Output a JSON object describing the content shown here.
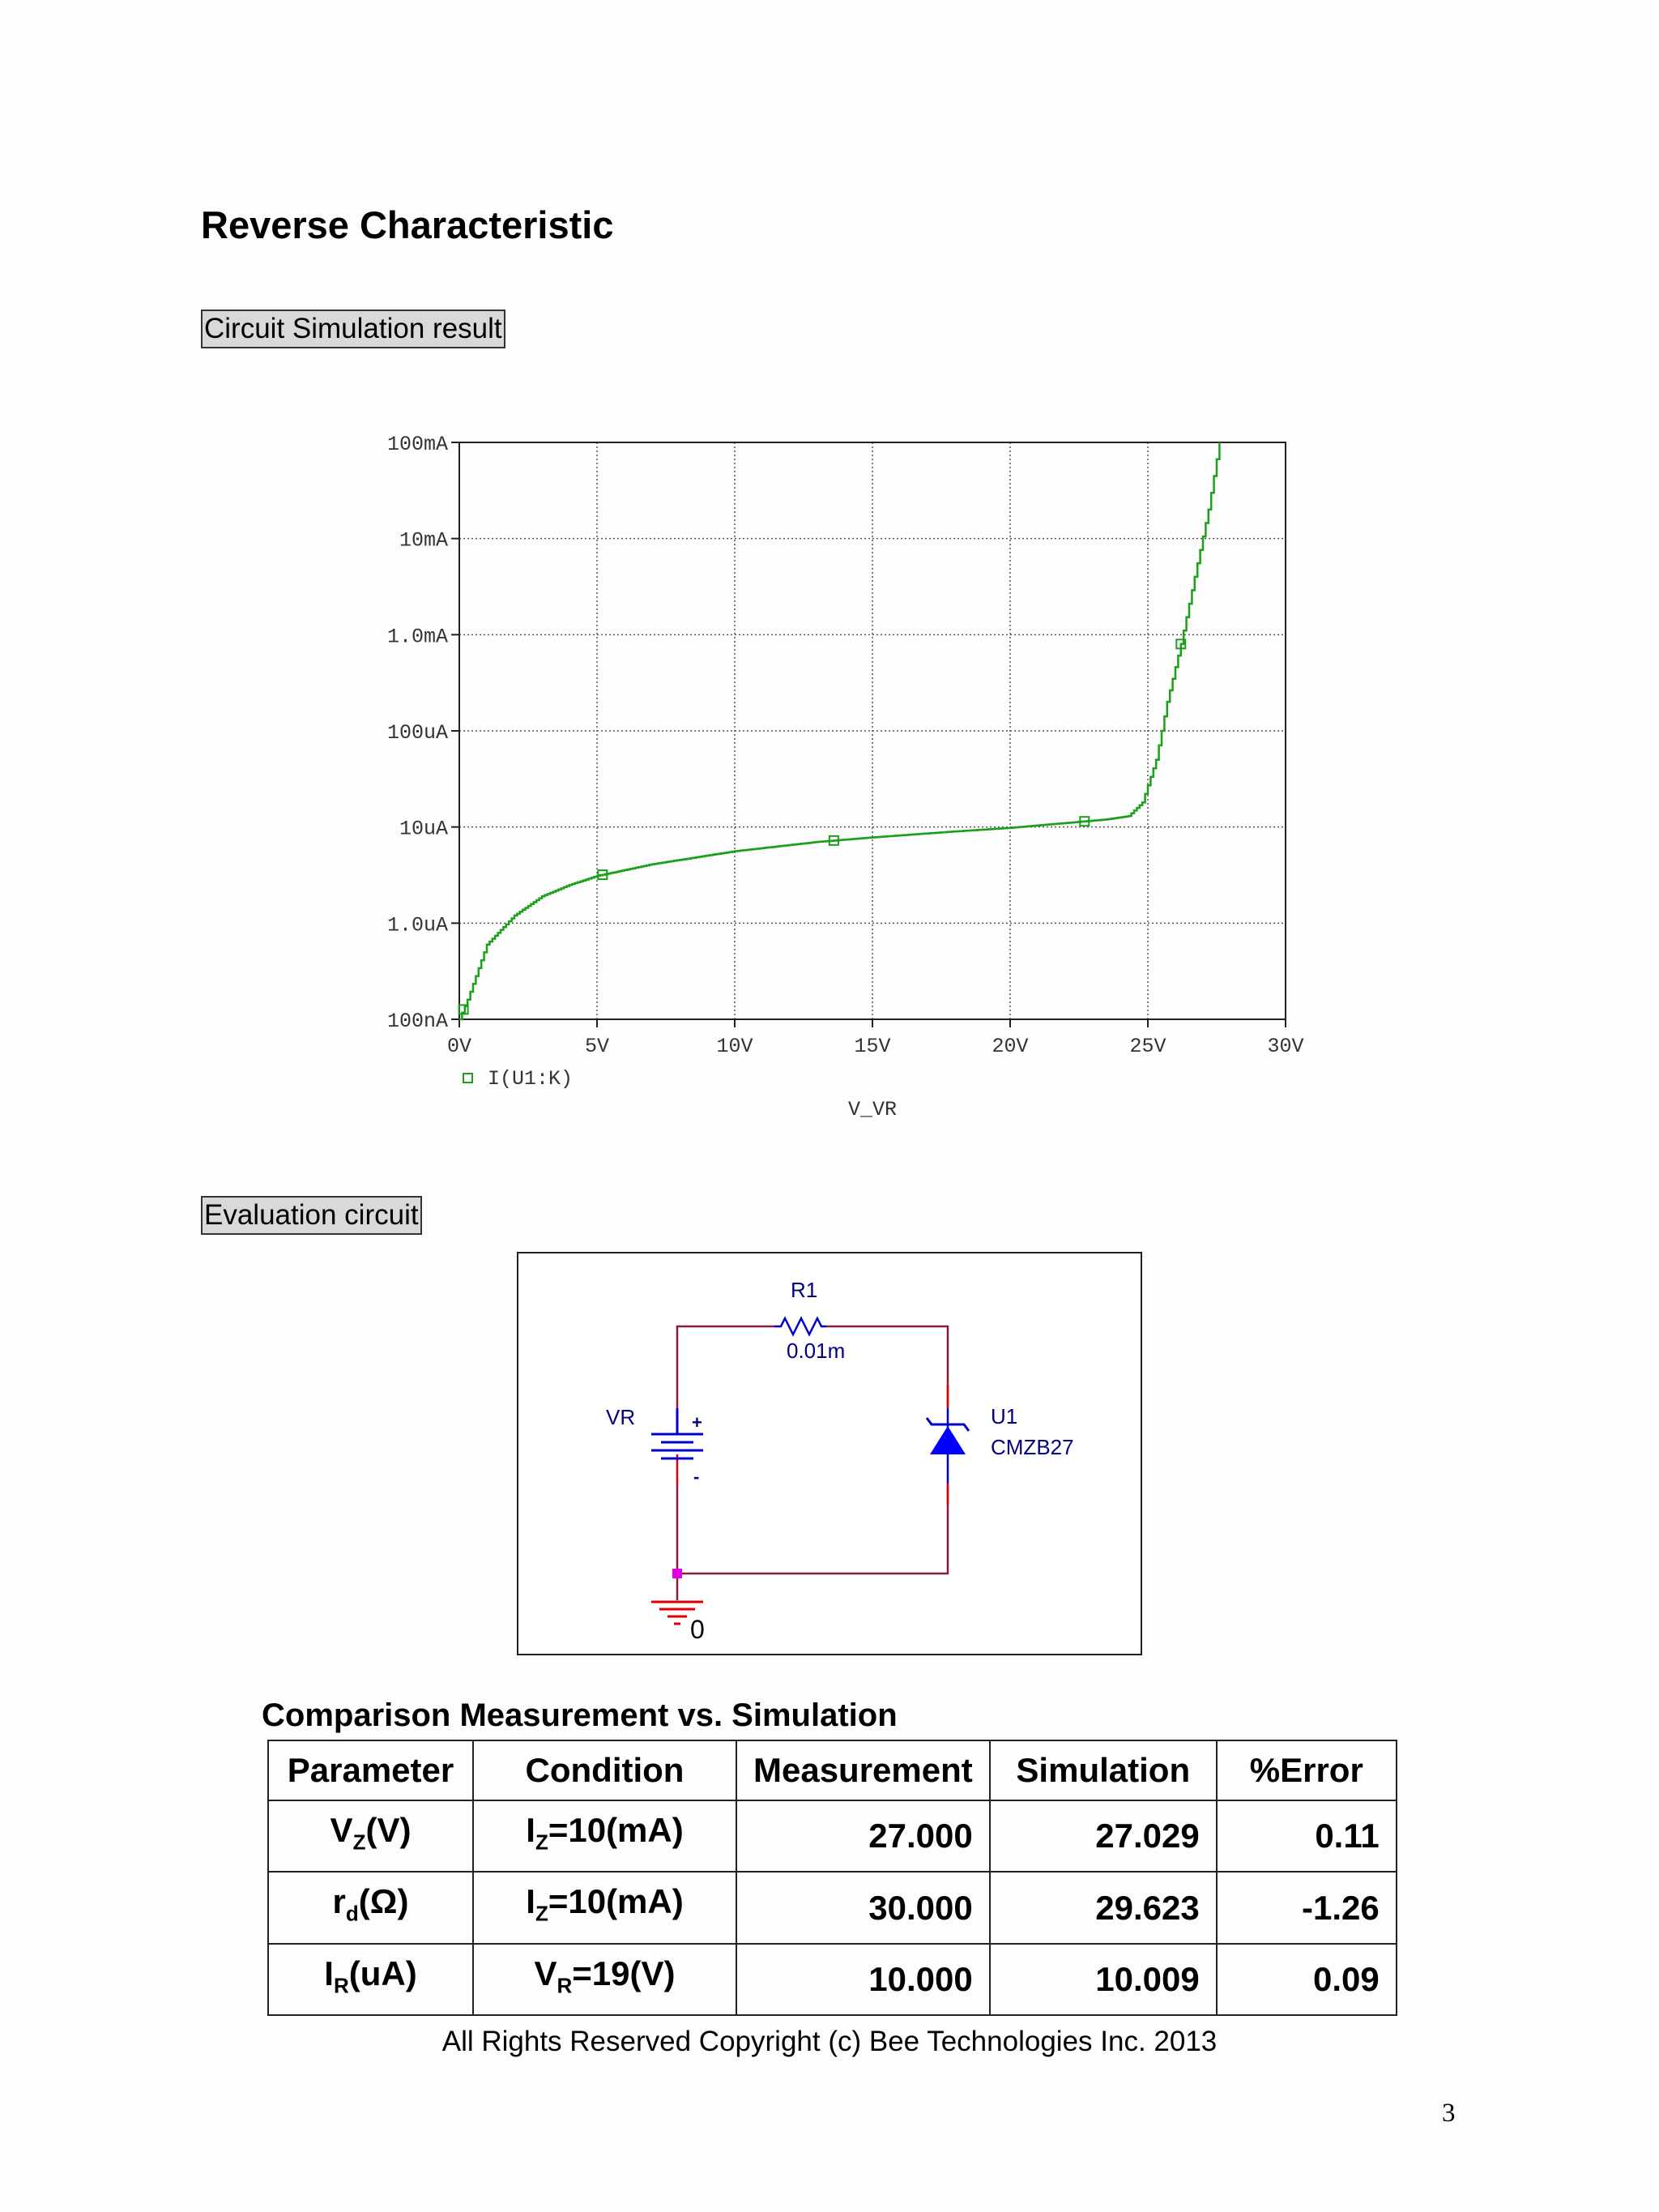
{
  "page": {
    "title": "Reverse Characteristic",
    "section1_label": "Circuit Simulation result",
    "section2_label": "Evaluation circuit",
    "footer": "All Rights Reserved Copyright (c) Bee Technologies Inc. 2013",
    "page_number": "3"
  },
  "chart_data": {
    "type": "line",
    "xlabel": "V_VR",
    "ylabel": "",
    "x_ticks": [
      "0V",
      "5V",
      "10V",
      "15V",
      "20V",
      "25V",
      "30V"
    ],
    "y_ticks": [
      "100nA",
      "1.0uA",
      "10uA",
      "100uA",
      "1.0mA",
      "10mA",
      "100mA"
    ],
    "xlim": [
      0,
      30
    ],
    "ylim": [
      1e-07,
      0.1
    ],
    "y_scale": "log",
    "grid": true,
    "legend_position": "bottom-left",
    "series": [
      {
        "name": "I(U1:K)",
        "color": "#1aa01a",
        "x": [
          0,
          0.3,
          1,
          2,
          3,
          4,
          5,
          7,
          10,
          13,
          15,
          18,
          20,
          22,
          23.5,
          24.3,
          24.8,
          25.3,
          25.7,
          26.2,
          26.7,
          27.2,
          27.6
        ],
        "y": [
          1e-07,
          1.6e-07,
          6e-07,
          1.2e-06,
          1.9e-06,
          2.5e-06,
          3.1e-06,
          4.1e-06,
          5.6e-06,
          7e-06,
          7.8e-06,
          9e-06,
          9.8e-06,
          1.1e-05,
          1.2e-05,
          1.3e-05,
          1.8e-05,
          5e-05,
          0.0002,
          0.0008,
          0.004,
          0.02,
          0.1
        ],
        "markers_x": [
          0.15,
          5.2,
          13.6,
          22.7,
          26.2
        ]
      }
    ]
  },
  "circuit": {
    "r1_name": "R1",
    "r1_value": "0.01m",
    "source_name": "VR",
    "plus_sign": "+",
    "minus_sign": "-",
    "diode_name": "U1",
    "diode_part": "CMZB27",
    "ground_label": "0",
    "colors": {
      "wire": "#8b1b3a",
      "part": "#0000cc",
      "pin": "#e00000",
      "node": "#e000e0"
    }
  },
  "comparison": {
    "title": "Comparison Measurement vs. Simulation",
    "headers": [
      "Parameter",
      "Condition",
      "Measurement",
      "Simulation",
      "%Error"
    ],
    "rows": [
      {
        "param_main": "V",
        "param_sub": "Z",
        "param_unit": "(V)",
        "cond_main": "I",
        "cond_sub": "Z",
        "cond_rest": "=10(mA)",
        "measurement": "27.000",
        "simulation": "27.029",
        "error": "0.11"
      },
      {
        "param_main": "r",
        "param_sub": "d",
        "param_unit": "(Ω)",
        "cond_main": "I",
        "cond_sub": "Z",
        "cond_rest": "=10(mA)",
        "measurement": "30.000",
        "simulation": "29.623",
        "error": "-1.26"
      },
      {
        "param_main": "I",
        "param_sub": "R",
        "param_unit": "(uA)",
        "cond_main": "V",
        "cond_sub": "R",
        "cond_rest": "=19(V)",
        "measurement": "10.000",
        "simulation": "10.009",
        "error": "0.09"
      }
    ]
  }
}
